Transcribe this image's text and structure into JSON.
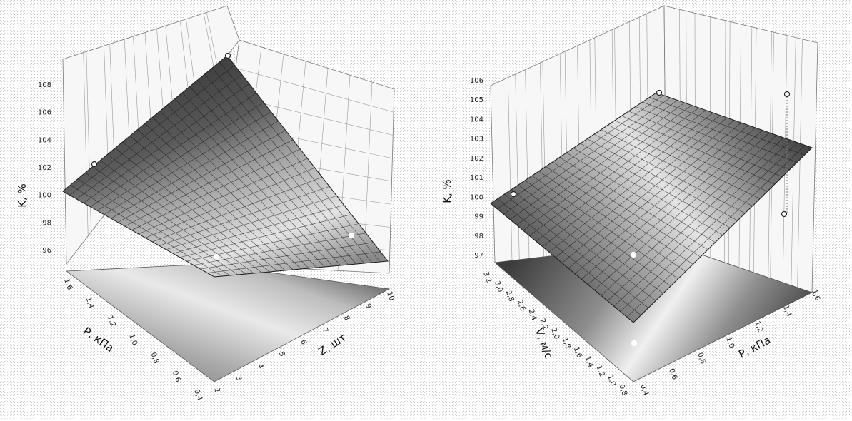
{
  "chart_data": [
    {
      "type": "surface",
      "title": "",
      "xlabel": "P, кПа",
      "ylabel": "Z, шт",
      "zlabel": "K, %",
      "x_ticks": [
        "0,4",
        "0,6",
        "0,8",
        "1,0",
        "1,2",
        "1,4",
        "1,6"
      ],
      "y_ticks": [
        "2",
        "3",
        "4",
        "5",
        "6",
        "7",
        "8",
        "9",
        "10"
      ],
      "z_ticks": [
        "96",
        "98",
        "100",
        "102",
        "104",
        "106",
        "108"
      ],
      "xlim": [
        0.4,
        1.6
      ],
      "ylim": [
        2,
        10
      ],
      "zlim": [
        95,
        108
      ],
      "surface_corners": [
        {
          "P": 0.4,
          "Z": 2,
          "K": 97.0
        },
        {
          "P": 0.4,
          "Z": 10,
          "K": 96.0
        },
        {
          "P": 1.6,
          "Z": 2,
          "K": 100.2
        },
        {
          "P": 1.6,
          "Z": 10,
          "K": 108.3
        }
      ],
      "points": [
        {
          "P": 1.6,
          "Z": 2,
          "K": 101.7
        },
        {
          "P": 1.6,
          "Z": 10,
          "K": 108.4
        },
        {
          "P": 0.8,
          "Z": 7,
          "K": 97.5
        },
        {
          "P": 0.6,
          "Z": 10,
          "K": 98.3
        }
      ],
      "grid": true
    },
    {
      "type": "surface",
      "title": "",
      "xlabel": "P, кПа",
      "ylabel": "V, м/с",
      "zlabel": "K, %",
      "x_ticks": [
        "0,4",
        "0,6",
        "0,8",
        "1,0",
        "1,2",
        "1,4",
        "1,6"
      ],
      "y_ticks": [
        "0,8",
        "1,0",
        "1,2",
        "1,4",
        "1,6",
        "1,8",
        "2,0",
        "2,2",
        "2,4",
        "2,6",
        "2,8",
        "3,0",
        "3,2"
      ],
      "z_ticks": [
        "97",
        "98",
        "99",
        "100",
        "101",
        "102",
        "103",
        "104",
        "105",
        "106"
      ],
      "xlim": [
        0.4,
        1.6
      ],
      "ylim": [
        0.8,
        3.2
      ],
      "zlim": [
        96,
        106
      ],
      "surface_corners": [
        {
          "P": 0.4,
          "V": 0.8,
          "K": 96.0
        },
        {
          "P": 0.4,
          "V": 3.2,
          "K": 98.7
        },
        {
          "P": 1.6,
          "V": 3.2,
          "K": 104.9
        },
        {
          "P": 1.6,
          "V": 0.8,
          "K": 102.6
        }
      ],
      "points": [
        {
          "P": 0.4,
          "V": 3.2,
          "K": 100.0
        },
        {
          "P": 1.6,
          "V": 3.2,
          "K": 105.0
        },
        {
          "P": 1.6,
          "V": 0.8,
          "K": 105.0
        },
        {
          "P": 1.6,
          "V": 0.8,
          "K": 99.2
        },
        {
          "P": 1.0,
          "V": 2.0,
          "K": 99.0
        },
        {
          "P": 0.4,
          "V": 0.8,
          "K": 99.5
        }
      ],
      "grid": true
    }
  ]
}
